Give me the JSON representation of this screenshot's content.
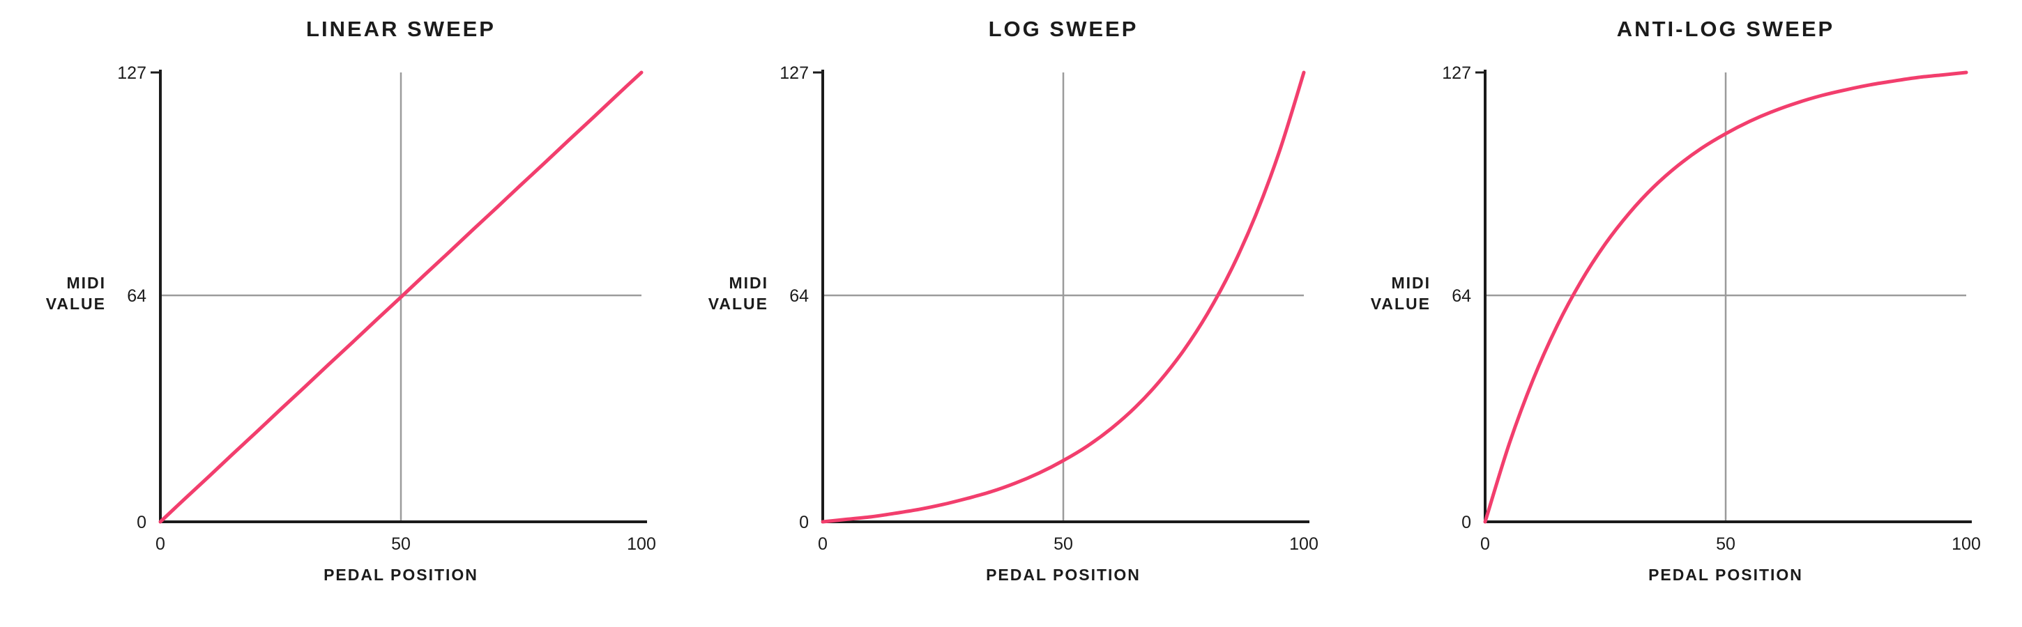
{
  "colors": {
    "background": "#ffffff",
    "curve": "#F23E6D",
    "axis": "#1b1b1b",
    "grid": "#9b9b9b",
    "text": "#1b1b1b"
  },
  "chart_data": [
    {
      "type": "line",
      "title": "LINEAR SWEEP",
      "xlabel": "PEDAL POSITION",
      "ylabel_lines": [
        "MIDI",
        "VALUE"
      ],
      "xlim": [
        0,
        100
      ],
      "ylim": [
        0,
        127
      ],
      "x_ticks": [
        0,
        50,
        100
      ],
      "y_ticks": [
        0,
        64,
        127
      ],
      "grid_x": [
        50
      ],
      "grid_y": [
        64
      ],
      "x": [
        0,
        5,
        10,
        15,
        20,
        25,
        30,
        35,
        40,
        45,
        50,
        55,
        60,
        65,
        70,
        75,
        80,
        85,
        90,
        95,
        100
      ],
      "values": [
        0,
        6.4,
        12.7,
        19.1,
        25.4,
        31.8,
        38.1,
        44.5,
        50.8,
        57.2,
        63.5,
        69.9,
        76.2,
        82.6,
        88.9,
        95.3,
        101.6,
        108,
        114.3,
        120.7,
        127
      ]
    },
    {
      "type": "line",
      "title": "LOG SWEEP",
      "xlabel": "PEDAL POSITION",
      "ylabel_lines": [
        "MIDI",
        "VALUE"
      ],
      "xlim": [
        0,
        100
      ],
      "ylim": [
        0,
        127
      ],
      "x_ticks": [
        0,
        50,
        100
      ],
      "y_ticks": [
        0,
        64,
        127
      ],
      "grid_x": [
        50
      ],
      "grid_y": [
        64
      ],
      "x": [
        0,
        5,
        10,
        15,
        20,
        25,
        30,
        35,
        40,
        45,
        50,
        55,
        60,
        65,
        70,
        75,
        80,
        85,
        90,
        95,
        100
      ],
      "values": [
        0,
        0.7,
        1.4,
        2.4,
        3.5,
        4.9,
        6.6,
        8.5,
        10.9,
        13.8,
        17.3,
        21.4,
        26.4,
        32.4,
        39.7,
        48.4,
        58.9,
        71.5,
        86.7,
        105,
        127
      ]
    },
    {
      "type": "line",
      "title": "ANTI-LOG SWEEP",
      "xlabel": "PEDAL POSITION",
      "ylabel_lines": [
        "MIDI",
        "VALUE"
      ],
      "xlim": [
        0,
        100
      ],
      "ylim": [
        0,
        127
      ],
      "x_ticks": [
        0,
        50,
        100
      ],
      "y_ticks": [
        0,
        64,
        127
      ],
      "grid_x": [
        50
      ],
      "grid_y": [
        64
      ],
      "x": [
        0,
        5,
        10,
        15,
        20,
        25,
        30,
        35,
        40,
        45,
        50,
        55,
        60,
        65,
        70,
        75,
        80,
        85,
        90,
        95,
        100
      ],
      "values": [
        0,
        22,
        40.3,
        55.5,
        68.1,
        78.6,
        87.3,
        94.6,
        100.6,
        105.6,
        109.7,
        113.2,
        116.1,
        118.5,
        120.5,
        122.1,
        123.5,
        124.6,
        125.6,
        126.3,
        127
      ]
    }
  ]
}
